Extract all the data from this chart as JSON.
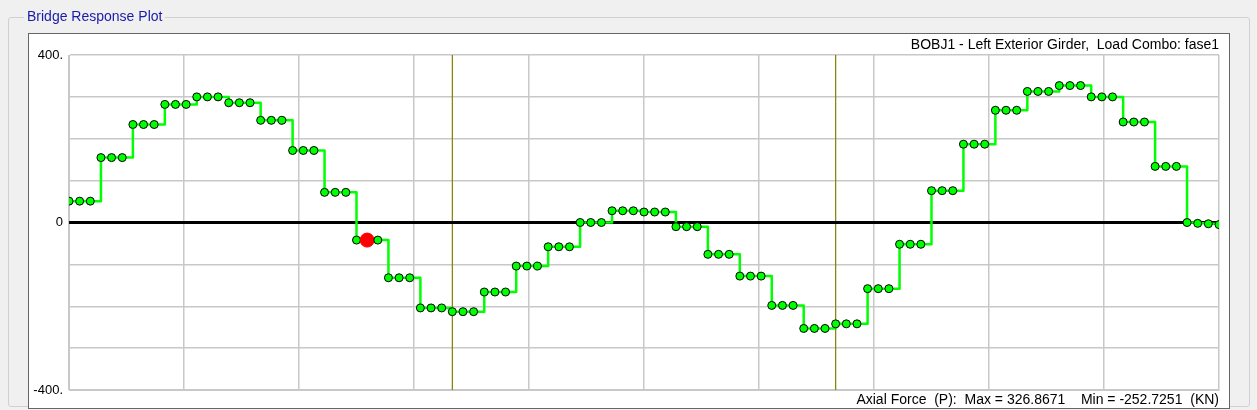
{
  "chart_data": {
    "type": "step",
    "title": "Bridge Response Plot",
    "annotations": [
      "BOBJ1 - Left Exterior Girder,  Load Combo: fase1",
      "Axial Force  (P):  Max = 326.8671    Min = -252.7251  (KN)"
    ],
    "categories": [
      null,
      null,
      null,
      null,
      null,
      null,
      null,
      null,
      null,
      null,
      null,
      null,
      null,
      null,
      null,
      null,
      null,
      null,
      null,
      null,
      null,
      null,
      null,
      null,
      null,
      null,
      null,
      null,
      null,
      null,
      null,
      null,
      null,
      null,
      null,
      null,
      null,
      null,
      null,
      null,
      null,
      null,
      null,
      null,
      null,
      null,
      null,
      null,
      null,
      null,
      null,
      null,
      null,
      null,
      null,
      null,
      null,
      null,
      null,
      null,
      null,
      null,
      null,
      null,
      null,
      null,
      null,
      null,
      null,
      null,
      null,
      null,
      null,
      null,
      null,
      null,
      null,
      null,
      null,
      null,
      null,
      null,
      null,
      null,
      null,
      null,
      null,
      null,
      null,
      null,
      null,
      null,
      null,
      null,
      null,
      null,
      null,
      null,
      null,
      null,
      null,
      null,
      null,
      null,
      null,
      null,
      null,
      null,
      null
    ],
    "series": [
      {
        "color": "#00ff00",
        "values": [
          51,
          51,
          51,
          155,
          155,
          155,
          234,
          234,
          234,
          282,
          282,
          282,
          300,
          300,
          300,
          286,
          286,
          286,
          244,
          244,
          244,
          172,
          172,
          172,
          72,
          72,
          72,
          -42,
          -42,
          -42,
          -132,
          -132,
          -132,
          -204,
          -204,
          -204,
          -213,
          -213,
          -213,
          -166,
          -166,
          -166,
          -104,
          -104,
          -104,
          -58,
          -58,
          -58,
          0,
          0,
          0,
          28,
          28,
          28,
          25,
          25,
          25,
          -10,
          -10,
          -10,
          -76,
          -76,
          -76,
          -128,
          -128,
          -128,
          -198,
          -198,
          -198,
          -253,
          -253,
          -253,
          -242,
          -242,
          -242,
          -158,
          -158,
          -158,
          -52,
          -52,
          -52,
          76,
          76,
          76,
          187,
          187,
          187,
          268,
          268,
          268,
          313,
          313,
          313,
          327,
          327,
          327,
          300,
          300,
          300,
          240,
          240,
          240,
          134,
          134,
          134,
          0,
          -2,
          -3,
          -5
        ],
        "colors": [
          "#00ff00",
          "#00ff00",
          "#00ff00",
          "#00ff00",
          "#00ff00",
          "#00ff00",
          "#00ff00",
          "#00ff00",
          "#00ff00",
          "#00ff00",
          "#00ff00",
          "#00ff00",
          "#00ff00",
          "#00ff00",
          "#00ff00",
          "#00ff00",
          "#00ff00",
          "#00ff00",
          "#00ff00",
          "#00ff00",
          "#00ff00",
          "#00ff00",
          "#00ff00",
          "#00ff00",
          "#00ff00",
          "#00ff00",
          "#00ff00",
          "#00ff00",
          "#ff0000",
          "#00ff00",
          "#00ff00",
          "#00ff00",
          "#00ff00",
          "#00ff00",
          "#00ff00",
          "#00ff00",
          "#00ff00",
          "#00ff00",
          "#00ff00",
          "#00ff00",
          "#00ff00",
          "#00ff00",
          "#00ff00",
          "#00ff00",
          "#00ff00",
          "#00ff00",
          "#00ff00",
          "#00ff00",
          "#00ff00",
          "#00ff00",
          "#00ff00",
          "#00ff00",
          "#00ff00",
          "#00ff00",
          "#00ff00",
          "#00ff00",
          "#00ff00",
          "#00ff00",
          "#00ff00",
          "#00ff00",
          "#00ff00",
          "#00ff00",
          "#00ff00",
          "#00ff00",
          "#00ff00",
          "#00ff00",
          "#00ff00",
          "#00ff00",
          "#00ff00",
          "#00ff00",
          "#00ff00",
          "#00ff00",
          "#00ff00",
          "#00ff00",
          "#00ff00",
          "#00ff00",
          "#00ff00",
          "#00ff00",
          "#00ff00",
          "#00ff00",
          "#00ff00",
          "#00ff00",
          "#00ff00",
          "#00ff00",
          "#00ff00",
          "#00ff00",
          "#00ff00",
          "#00ff00",
          "#00ff00",
          "#00ff00",
          "#00ff00",
          "#00ff00",
          "#00ff00",
          "#00ff00",
          "#00ff00",
          "#00ff00",
          "#00ff00",
          "#00ff00",
          "#00ff00",
          "#00ff00",
          "#00ff00",
          "#00ff00",
          "#00ff00",
          "#00ff00",
          "#00ff00",
          "#00ff00",
          "#00ff00",
          "#00ff00",
          "#00ff00"
        ]
      }
    ],
    "ylim": [
      -400,
      400
    ],
    "yticks": [
      {
        "value": -400,
        "label": "-400."
      },
      {
        "value": -300,
        "label": null
      },
      {
        "value": -200,
        "label": null
      },
      {
        "value": -100,
        "label": null
      },
      0,
      {
        "value": 100,
        "label": null
      },
      {
        "value": 200,
        "label": null
      },
      {
        "value": 300,
        "label": null
      },
      {
        "value": 400,
        "label": "400."
      }
    ],
    "ref_lines": [
      {
        "axis": "y",
        "value": 0,
        "color": "#000000"
      }
    ],
    "tick_labels": "y",
    "grid": true,
    "legend": false,
    "marker": "circle"
  }
}
